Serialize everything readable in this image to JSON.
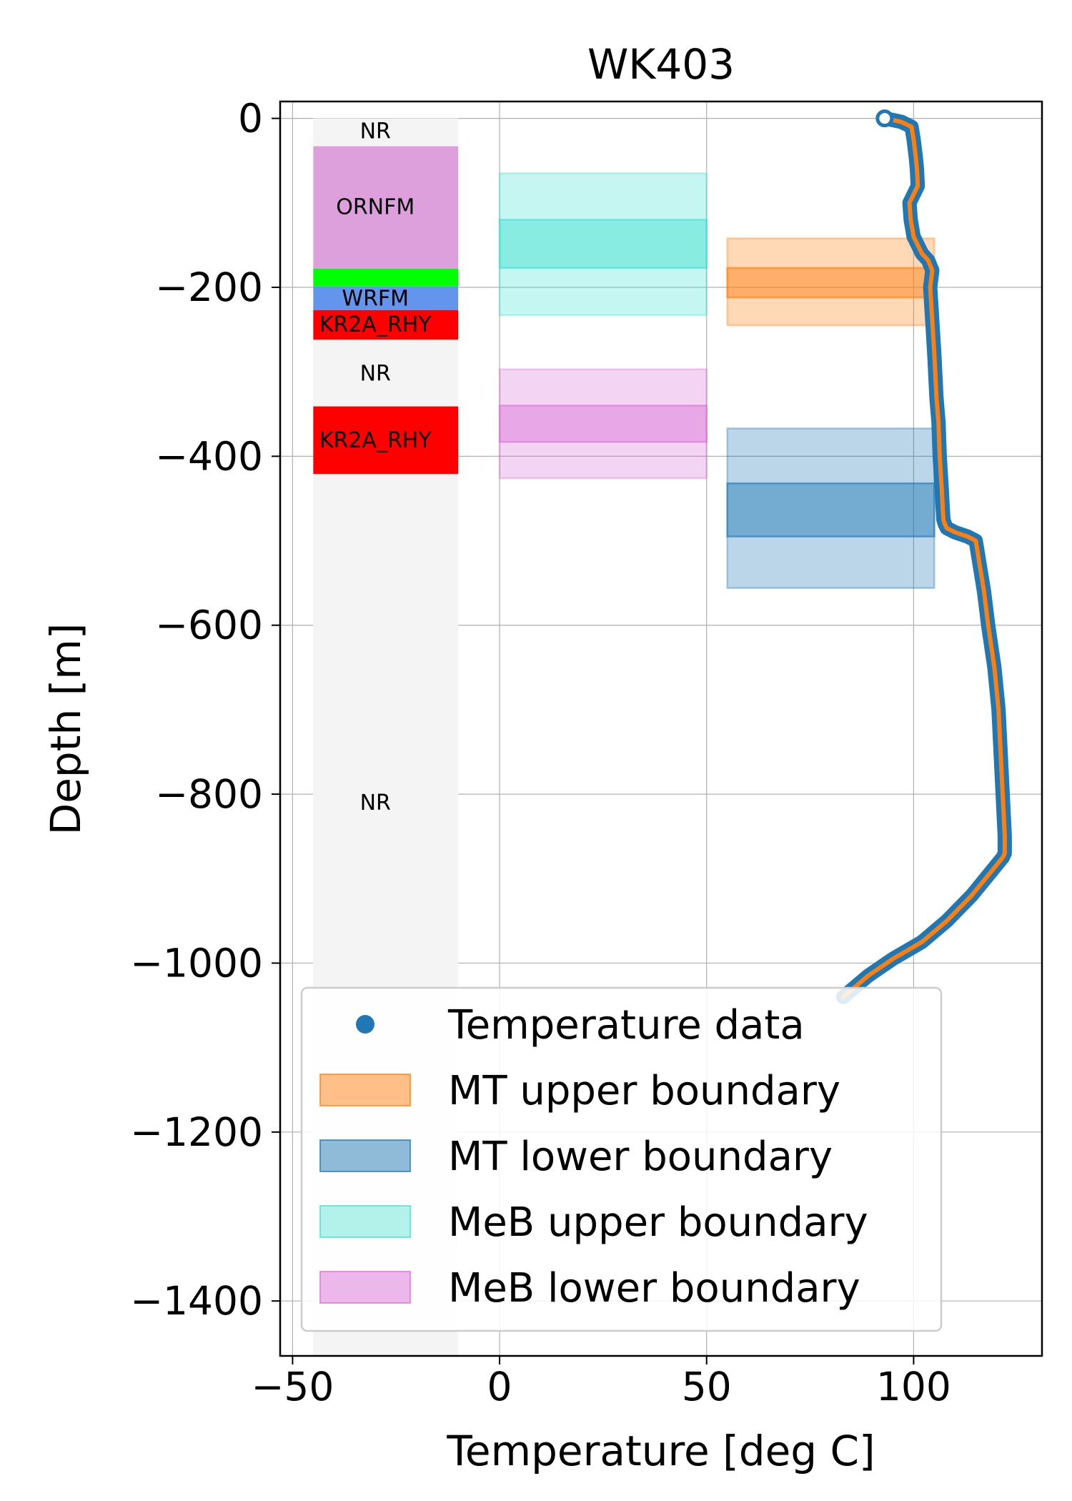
{
  "chart_data": {
    "type": "line",
    "title": "WK403",
    "xlabel": "Temperature [deg C]",
    "ylabel": "Depth [m]",
    "xlim": [
      -53,
      131
    ],
    "ylim": [
      -1465,
      20
    ],
    "grid": true,
    "xticks": [
      -50,
      0,
      50,
      100
    ],
    "yticks": [
      0,
      -200,
      -400,
      -600,
      -800,
      -1000,
      -1200,
      -1400
    ],
    "xtick_labels": [
      "−50",
      "0",
      "50",
      "100"
    ],
    "ytick_labels": [
      "0",
      "−200",
      "−400",
      "−600",
      "−800",
      "−1000",
      "−1200",
      "−1400"
    ],
    "legend_position": "lower-center",
    "legend": [
      {
        "label": "Temperature data",
        "kind": "marker",
        "color": "#1f77b4"
      },
      {
        "label": "MT upper boundary",
        "kind": "patch",
        "color": "#ff7f0e",
        "opacity": 0.5
      },
      {
        "label": "MT lower boundary",
        "kind": "patch",
        "color": "#1f77b4",
        "opacity": 0.5
      },
      {
        "label": "MeB upper boundary",
        "kind": "patch",
        "color": "#40e0d0",
        "opacity": 0.4
      },
      {
        "label": "MeB lower boundary",
        "kind": "patch",
        "color": "#da70d6",
        "opacity": 0.5
      }
    ],
    "lithology_column": {
      "x_range": [
        -45,
        -10
      ],
      "background_color": "#f4f4f4",
      "layers": [
        {
          "label": "NR",
          "top": 0,
          "bottom": -33,
          "color": "#f4f4f4"
        },
        {
          "label": "ORNFM",
          "top": -33,
          "bottom": -178,
          "color": "#dda0dd"
        },
        {
          "label": "",
          "top": -178,
          "bottom": -199,
          "color": "#00ff00"
        },
        {
          "label": "WRFM",
          "top": -199,
          "bottom": -227,
          "color": "#6495ed"
        },
        {
          "label": "KR2A_RHY",
          "top": -227,
          "bottom": -262,
          "color": "#ff0000"
        },
        {
          "label": "NR",
          "top": -262,
          "bottom": -341,
          "color": "#f4f4f4"
        },
        {
          "label": "KR2A_RHY",
          "top": -341,
          "bottom": -421,
          "color": "#ff0000"
        },
        {
          "label": "NR",
          "top": -421,
          "bottom": -1465,
          "color": "#f4f4f4"
        }
      ]
    },
    "boundary_boxes": [
      {
        "name": "MeB upper boundary",
        "x_range": [
          0,
          50
        ],
        "outer": [
          -65,
          -233
        ],
        "inner": [
          -120,
          -177
        ],
        "color": "#40e0d0"
      },
      {
        "name": "MeB lower boundary",
        "x_range": [
          0,
          50
        ],
        "outer": [
          -297,
          -426
        ],
        "inner": [
          -340,
          -383
        ],
        "color": "#da70d6"
      },
      {
        "name": "MT upper boundary",
        "x_range": [
          55,
          105
        ],
        "outer": [
          -142,
          -245
        ],
        "inner": [
          -177,
          -212
        ],
        "color": "#ff7f0e"
      },
      {
        "name": "MT lower boundary",
        "x_range": [
          55,
          105
        ],
        "outer": [
          -367,
          -556
        ],
        "inner": [
          -432,
          -495
        ],
        "color": "#1f77b4"
      }
    ],
    "series": [
      {
        "name": "Temperature data",
        "color": "#1f77b4",
        "smoothed_color": "#ff7f0e",
        "first_point": [
          93,
          0
        ],
        "x": [
          93,
          97,
          99.5,
          100,
          100.5,
          100.8,
          101,
          100,
          99,
          99.3,
          100,
          101,
          102,
          103.5,
          104.5,
          104,
          104.5,
          105,
          105.5,
          106,
          106.3,
          106.8,
          107,
          107.2,
          107.5,
          108,
          110,
          113,
          115,
          116,
          117,
          118,
          119.5,
          120.5,
          121,
          121.5,
          122,
          122,
          121.5,
          119,
          114,
          108,
          102,
          95,
          89,
          83
        ],
        "y": [
          0,
          -4,
          -10,
          -25,
          -45,
          -60,
          -80,
          -90,
          -100,
          -120,
          -140,
          -150,
          -160,
          -168,
          -180,
          -200,
          -240,
          -280,
          -330,
          -360,
          -400,
          -440,
          -460,
          -475,
          -480,
          -485,
          -490,
          -495,
          -500,
          -530,
          -560,
          -600,
          -650,
          -700,
          -750,
          -800,
          -850,
          -870,
          -875,
          -890,
          -920,
          -950,
          -975,
          -995,
          -1015,
          -1040
        ]
      }
    ],
    "annotations": [
      {
        "text": "NR",
        "x": -30,
        "y": -15
      },
      {
        "text": "ORNFM",
        "x": -30,
        "y": -105
      },
      {
        "text": "WRFM",
        "x": -30,
        "y": -213
      },
      {
        "text": "KR2A_RHY",
        "x": -30,
        "y": -244
      },
      {
        "text": "NR",
        "x": -30,
        "y": -302
      },
      {
        "text": "KR2A_RHY",
        "x": -30,
        "y": -381
      },
      {
        "text": "NR",
        "x": -30,
        "y": -810
      }
    ]
  }
}
